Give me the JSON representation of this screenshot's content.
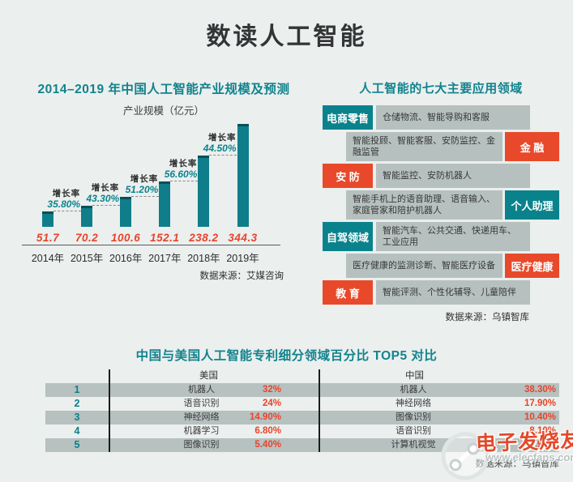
{
  "header": {
    "title": "数读人工智能"
  },
  "colors": {
    "background": "#ebefee",
    "teal": "#0b818a",
    "red": "#e8492a",
    "value_red": "#e8442a",
    "gray_box": "#b6c1bf",
    "dark_text": "#333333"
  },
  "chart_data": [
    {
      "type": "bar",
      "title": "2014–2019 年中国人工智能产业规模及预测",
      "subtitle": "产业规模（亿元）",
      "categories": [
        "2014年",
        "2015年",
        "2016年",
        "2017年",
        "2018年",
        "2019年"
      ],
      "values": [
        51.7,
        70.2,
        100.6,
        152.1,
        238.2,
        344.3
      ],
      "value_labels": [
        "51.7",
        "70.2",
        "100.6",
        "152.1",
        "238.2",
        "344.3"
      ],
      "growth_label": "增长率",
      "growth_rates": [
        "35.80%",
        "43.30%",
        "51.20%",
        "56.60%",
        "44.50%"
      ],
      "ylim": [
        0,
        360
      ],
      "legend_position": "none",
      "grid": false,
      "source": "数据来源：艾媒咨询"
    },
    {
      "type": "table",
      "title": "中国与美国人工智能专利细分领域百分比 TOP5 对比",
      "columns": [
        "美国",
        "中国"
      ],
      "ranks": [
        "1",
        "2",
        "3",
        "4",
        "5"
      ],
      "us": [
        {
          "name": "机器人",
          "value": "32%"
        },
        {
          "name": "语音识别",
          "value": "24%"
        },
        {
          "name": "神经网络",
          "value": "14.90%"
        },
        {
          "name": "机器学习",
          "value": "6.80%"
        },
        {
          "name": "图像识别",
          "value": "5.40%"
        }
      ],
      "cn": [
        {
          "name": "机器人",
          "value": "38.30%"
        },
        {
          "name": "神经网络",
          "value": "17.90%"
        },
        {
          "name": "图像识别",
          "value": "10.40%"
        },
        {
          "name": "语音识别",
          "value": "8.10%"
        },
        {
          "name": "计算机视觉",
          "value": "5.90%"
        }
      ],
      "source": "数据来源：乌镇智库"
    }
  ],
  "apps": {
    "title": "人工智能的七大主要应用领域",
    "rows": [
      {
        "label": "电商零售",
        "side": "left",
        "color": "teal",
        "text": "仓储物流、智能导购和客服"
      },
      {
        "label": "金 融",
        "side": "right",
        "color": "red",
        "text": "智能投顾、智能客服、安防监控、金融监管"
      },
      {
        "label": "安 防",
        "side": "left",
        "color": "red",
        "text": "智能监控、安防机器人"
      },
      {
        "label": "个人助理",
        "side": "right",
        "color": "teal",
        "text": "智能手机上的语音助理、语音输入、家庭管家和陪护机器人"
      },
      {
        "label": "自驾领域",
        "side": "left",
        "color": "teal",
        "text": "智能汽车、公共交通、快递用车、工业应用"
      },
      {
        "label": "医疗健康",
        "side": "right",
        "color": "red",
        "text": "医疗健康的监测诊断、智能医疗设备"
      },
      {
        "label": "教 育",
        "side": "left",
        "color": "red",
        "text": "智能评测、个性化辅导、儿童陪伴"
      }
    ],
    "source": "数据来源：乌镇智库"
  },
  "watermark": {
    "brand": "电子发烧友",
    "site": "www.elecfans.com"
  }
}
